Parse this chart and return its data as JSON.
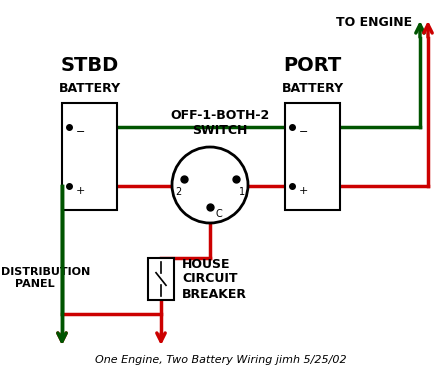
{
  "bg_color": "#ffffff",
  "title": "One Engine, Two Battery Wiring jimh 5/25/02",
  "stbd_label_top": "STBD",
  "stbd_label_bot": "BATTERY",
  "port_label_top": "PORT",
  "port_label_bot": "BATTERY",
  "switch_label": "OFF-1-BOTH-2\nSWITCH",
  "engine_label": "TO ENGINE",
  "dist_label": "TO DISTRIBUTION\nPANEL",
  "house_label": "HOUSE\nCIRCUIT\nBREAKER",
  "red": "#cc0000",
  "green": "#005500",
  "black": "#000000"
}
